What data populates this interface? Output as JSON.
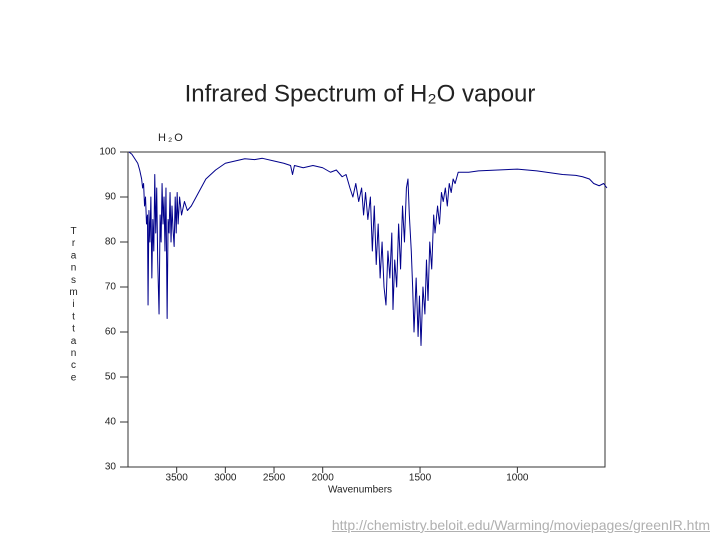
{
  "chart_data": {
    "type": "line",
    "title": "Infrared Spectrum of H₂O vapour",
    "annotation": "H₂O",
    "x_label": "Wavenumbers",
    "y_label": "Transmittance",
    "source": "http://chemistry.beloit.edu/Warming/moviepages/greenIR.htm",
    "xlim": [
      4000,
      550
    ],
    "x_scale_change": {
      "at": 2000,
      "factor": 2
    },
    "xticks": [
      3500,
      3000,
      2500,
      2000,
      1500,
      1000
    ],
    "ylim": [
      30,
      100
    ],
    "yticks": [
      30,
      40,
      50,
      60,
      70,
      80,
      90,
      100
    ],
    "grid": false,
    "series": [
      {
        "name": "H₂O",
        "color": "#00008b",
        "x": [
          3990,
          3960,
          3930,
          3900,
          3880,
          3860,
          3850,
          3840,
          3830,
          3820,
          3810,
          3800,
          3794,
          3785,
          3775,
          3765,
          3755,
          3745,
          3735,
          3725,
          3715,
          3705,
          3695,
          3681,
          3670,
          3660,
          3650,
          3640,
          3630,
          3620,
          3610,
          3598,
          3588,
          3578,
          3568,
          3558,
          3548,
          3538,
          3526,
          3515,
          3505,
          3495,
          3485,
          3470,
          3450,
          3420,
          3390,
          3350,
          3300,
          3250,
          3200,
          3100,
          3000,
          2900,
          2800,
          2700,
          2620,
          2500,
          2400,
          2330,
          2310,
          2290,
          2200,
          2100,
          2000,
          1960,
          1930,
          1900,
          1880,
          1860,
          1845,
          1830,
          1815,
          1800,
          1790,
          1780,
          1768,
          1755,
          1745,
          1735,
          1725,
          1715,
          1705,
          1695,
          1685,
          1675,
          1665,
          1655,
          1645,
          1639,
          1630,
          1620,
          1610,
          1600,
          1590,
          1580,
          1570,
          1562,
          1555,
          1545,
          1538,
          1531,
          1520,
          1510,
          1503,
          1495,
          1485,
          1475,
          1467,
          1459,
          1450,
          1440,
          1430,
          1423,
          1410,
          1400,
          1390,
          1381,
          1370,
          1360,
          1350,
          1340,
          1330,
          1320,
          1304,
          1250,
          1200,
          1100,
          1000,
          900,
          800,
          768,
          700,
          665,
          630,
          608,
          580,
          557,
          540
        ],
        "values": [
          100,
          99.5,
          98.5,
          97.5,
          96,
          94,
          92,
          93,
          88,
          90,
          84,
          86,
          66,
          87,
          80,
          90,
          72,
          85,
          78,
          95,
          82,
          92,
          76,
          64,
          86,
          80,
          93,
          84,
          90,
          78,
          92,
          63,
          85,
          82,
          91,
          80,
          88,
          83,
          79,
          90,
          82,
          91,
          84,
          90,
          86,
          89,
          87,
          88,
          90,
          92,
          94,
          96,
          97.5,
          98,
          98.5,
          98.3,
          98.6,
          98,
          97.5,
          97,
          95,
          97,
          96.5,
          97,
          96.5,
          95.5,
          96,
          94.5,
          95,
          92,
          90,
          93,
          89,
          92,
          86,
          91,
          85,
          90,
          78,
          88,
          75,
          84,
          72,
          80,
          70,
          66,
          78,
          72,
          82,
          65,
          76,
          70,
          84,
          74,
          88,
          80,
          92,
          94,
          86,
          78,
          70,
          60,
          72,
          59,
          68,
          57,
          70,
          64,
          76,
          67,
          80,
          74,
          86,
          82,
          88,
          84,
          91,
          89,
          92,
          88,
          93,
          91,
          94,
          93,
          95.5,
          95.5,
          95.8,
          96,
          96.2,
          95.8,
          95.2,
          95,
          94.8,
          94.5,
          94,
          93,
          92.5,
          93,
          92
        ]
      }
    ]
  }
}
